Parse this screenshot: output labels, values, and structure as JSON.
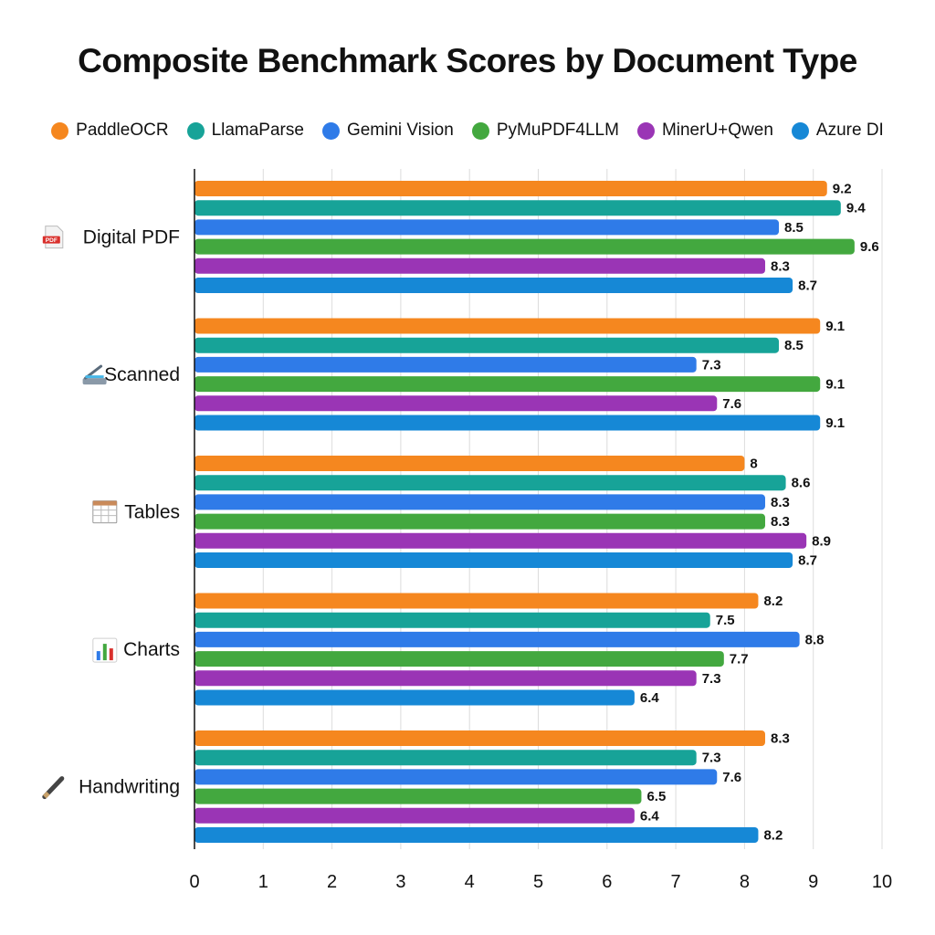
{
  "chart_data": {
    "type": "bar",
    "orientation": "horizontal",
    "title": "Composite Benchmark Scores by Document Type",
    "xlabel": "",
    "ylabel": "",
    "xlim": [
      0,
      10
    ],
    "xticks": [
      0,
      1,
      2,
      3,
      4,
      5,
      6,
      7,
      8,
      9,
      10
    ],
    "grid": "vertical",
    "legend_position": "top",
    "categories": [
      {
        "label": "Digital PDF",
        "icon": "pdf-icon"
      },
      {
        "label": "Scanned",
        "icon": "scanner-icon"
      },
      {
        "label": "Tables",
        "icon": "table-icon"
      },
      {
        "label": "Charts",
        "icon": "bar-chart-icon"
      },
      {
        "label": "Handwriting",
        "icon": "pen-icon"
      }
    ],
    "series": [
      {
        "name": "PaddleOCR",
        "color": "#f5871f",
        "values": [
          9.2,
          9.1,
          8,
          8.2,
          8.3
        ]
      },
      {
        "name": "LlamaParse",
        "color": "#17a398",
        "values": [
          9.4,
          8.5,
          8.6,
          7.5,
          7.3
        ]
      },
      {
        "name": "Gemini Vision",
        "color": "#2f7be8",
        "values": [
          8.5,
          7.3,
          8.3,
          8.8,
          7.6
        ]
      },
      {
        "name": "PyMuPDF4LLM",
        "color": "#43a83f",
        "values": [
          9.6,
          9.1,
          8.3,
          7.7,
          6.5
        ]
      },
      {
        "name": "MinerU+Qwen",
        "color": "#9a35b5",
        "values": [
          8.3,
          7.6,
          8.9,
          7.3,
          6.4
        ]
      },
      {
        "name": "Azure DI",
        "color": "#1688d6",
        "values": [
          8.7,
          9.1,
          8.7,
          6.4,
          8.2
        ]
      }
    ]
  }
}
